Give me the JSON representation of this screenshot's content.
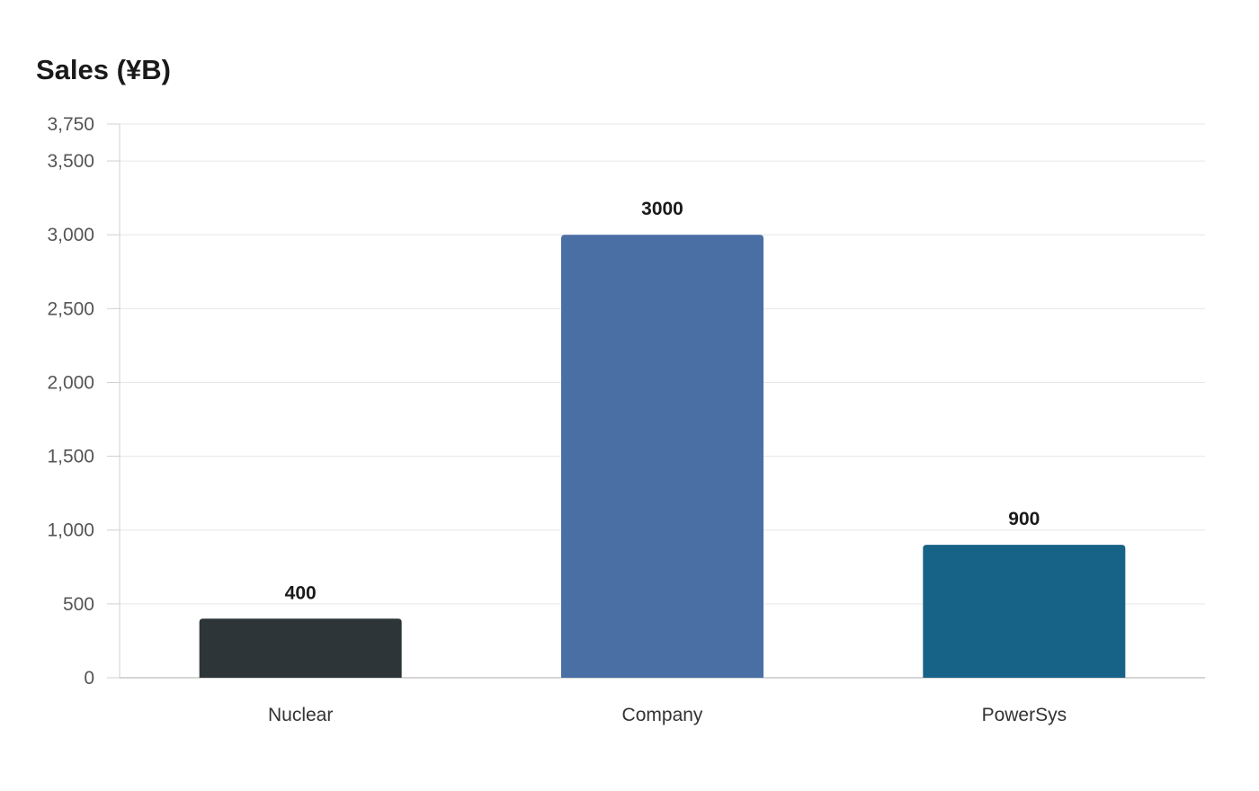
{
  "chart_data": {
    "type": "bar",
    "title": "Sales (¥B)",
    "xlabel": "",
    "ylabel": "",
    "categories": [
      "Nuclear",
      "Company",
      "PowerSys"
    ],
    "values": [
      400,
      3000,
      900
    ],
    "value_labels": [
      "400",
      "3000",
      "900"
    ],
    "bar_colors": [
      "#2e3538",
      "#4a6fa5",
      "#176287"
    ],
    "ylim": [
      0,
      3750
    ],
    "yticks": [
      0,
      500,
      1000,
      1500,
      2000,
      2500,
      3000,
      3500,
      3750
    ],
    "ytick_labels": [
      "0",
      "500",
      "1,000",
      "1,500",
      "2,000",
      "2,500",
      "3,000",
      "3,500",
      "3,750"
    ],
    "grid": true,
    "legend": "none"
  }
}
